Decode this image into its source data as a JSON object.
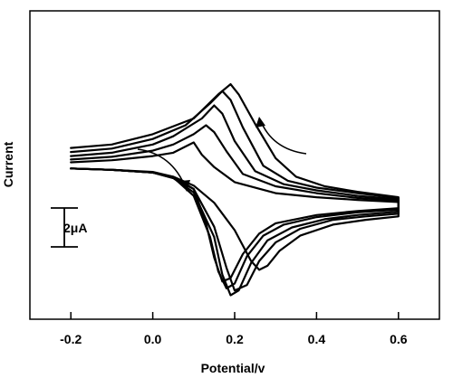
{
  "chart_data": {
    "type": "line",
    "xlabel": "Potential/v",
    "ylabel": "Current",
    "xlim": [
      -0.3,
      0.7
    ],
    "ylim": [
      -22,
      23
    ],
    "grid": false,
    "xticks": [
      -0.2,
      0.0,
      0.2,
      0.4,
      0.6
    ],
    "xtick_labels": [
      "-0.2",
      "0.0",
      "0.2",
      "0.4",
      "0.6"
    ],
    "scale_bar": {
      "label": "2μA",
      "magnitude_uA": 2
    },
    "series": [
      {
        "forward": [
          [
            -0.2,
            0.0
          ],
          [
            -0.1,
            -0.2
          ],
          [
            0.0,
            -0.6
          ],
          [
            0.05,
            -1.2
          ],
          [
            0.1,
            -3.0
          ],
          [
            0.13,
            -8.0
          ],
          [
            0.15,
            -13.0
          ],
          [
            0.17,
            -16.5
          ],
          [
            0.19,
            -16.0
          ],
          [
            0.22,
            -12.5
          ],
          [
            0.26,
            -9.5
          ],
          [
            0.3,
            -8.0
          ],
          [
            0.4,
            -6.8
          ],
          [
            0.5,
            -6.2
          ],
          [
            0.6,
            -5.8
          ]
        ],
        "reverse": [
          [
            0.6,
            -4.9
          ],
          [
            0.5,
            -4.6
          ],
          [
            0.4,
            -4.2
          ],
          [
            0.3,
            -3.6
          ],
          [
            0.2,
            -2.0
          ],
          [
            0.15,
            0.2
          ],
          [
            0.12,
            2.0
          ],
          [
            0.1,
            3.8
          ],
          [
            0.08,
            3.2
          ],
          [
            0.05,
            2.3
          ],
          [
            0.0,
            1.8
          ],
          [
            -0.1,
            1.2
          ],
          [
            -0.2,
            0.9
          ]
        ]
      },
      {
        "forward": [
          [
            -0.2,
            0.0
          ],
          [
            -0.1,
            -0.2
          ],
          [
            0.0,
            -0.6
          ],
          [
            0.05,
            -1.3
          ],
          [
            0.1,
            -4.0
          ],
          [
            0.14,
            -10.0
          ],
          [
            0.16,
            -15.0
          ],
          [
            0.18,
            -17.5
          ],
          [
            0.2,
            -16.8
          ],
          [
            0.23,
            -12.8
          ],
          [
            0.27,
            -9.8
          ],
          [
            0.32,
            -8.2
          ],
          [
            0.4,
            -7.1
          ],
          [
            0.5,
            -6.4
          ],
          [
            0.6,
            -6.0
          ]
        ],
        "reverse": [
          [
            0.6,
            -4.7
          ],
          [
            0.5,
            -4.3
          ],
          [
            0.4,
            -3.6
          ],
          [
            0.3,
            -2.6
          ],
          [
            0.22,
            -0.8
          ],
          [
            0.18,
            2.5
          ],
          [
            0.15,
            5.3
          ],
          [
            0.13,
            6.3
          ],
          [
            0.1,
            5.0
          ],
          [
            0.05,
            3.5
          ],
          [
            0.0,
            2.6
          ],
          [
            -0.1,
            1.7
          ],
          [
            -0.2,
            1.3
          ]
        ]
      },
      {
        "forward": [
          [
            -0.2,
            0.0
          ],
          [
            -0.1,
            -0.2
          ],
          [
            0.0,
            -0.6
          ],
          [
            0.05,
            -1.4
          ],
          [
            0.1,
            -3.5
          ],
          [
            0.15,
            -10.0
          ],
          [
            0.17,
            -15.5
          ],
          [
            0.19,
            -18.5
          ],
          [
            0.21,
            -17.8
          ],
          [
            0.24,
            -13.8
          ],
          [
            0.28,
            -10.5
          ],
          [
            0.34,
            -8.6
          ],
          [
            0.42,
            -7.4
          ],
          [
            0.5,
            -6.8
          ],
          [
            0.6,
            -6.3
          ]
        ],
        "reverse": [
          [
            0.6,
            -4.5
          ],
          [
            0.5,
            -4.0
          ],
          [
            0.4,
            -3.2
          ],
          [
            0.32,
            -2.3
          ],
          [
            0.25,
            -0.4
          ],
          [
            0.2,
            4.0
          ],
          [
            0.17,
            8.0
          ],
          [
            0.15,
            9.2
          ],
          [
            0.12,
            7.3
          ],
          [
            0.05,
            4.7
          ],
          [
            0.0,
            3.5
          ],
          [
            -0.1,
            2.3
          ],
          [
            -0.2,
            1.8
          ]
        ]
      },
      {
        "forward": [
          [
            -0.2,
            0.0
          ],
          [
            -0.1,
            -0.2
          ],
          [
            0.0,
            -0.6
          ],
          [
            0.05,
            -1.4
          ],
          [
            0.1,
            -3.0
          ],
          [
            0.15,
            -8.5
          ],
          [
            0.18,
            -14.5
          ],
          [
            0.2,
            -17.8
          ],
          [
            0.23,
            -17.0
          ],
          [
            0.26,
            -13.5
          ],
          [
            0.3,
            -10.8
          ],
          [
            0.36,
            -8.8
          ],
          [
            0.44,
            -7.5
          ],
          [
            0.52,
            -7.0
          ],
          [
            0.6,
            -6.6
          ]
        ],
        "reverse": [
          [
            0.6,
            -4.3
          ],
          [
            0.5,
            -3.6
          ],
          [
            0.4,
            -2.8
          ],
          [
            0.33,
            -1.8
          ],
          [
            0.27,
            0.4
          ],
          [
            0.22,
            6.0
          ],
          [
            0.19,
            10.0
          ],
          [
            0.17,
            11.3
          ],
          [
            0.14,
            9.5
          ],
          [
            0.08,
            6.3
          ],
          [
            0.0,
            4.3
          ],
          [
            -0.1,
            2.9
          ],
          [
            -0.2,
            2.4
          ]
        ]
      },
      {
        "forward": [
          [
            -0.2,
            0.0
          ],
          [
            -0.1,
            -0.2
          ],
          [
            0.0,
            -0.5
          ],
          [
            0.05,
            -1.2
          ],
          [
            0.1,
            -2.5
          ],
          [
            0.15,
            -5.0
          ],
          [
            0.2,
            -9.0
          ],
          [
            0.24,
            -13.5
          ],
          [
            0.26,
            -14.8
          ],
          [
            0.28,
            -14.2
          ],
          [
            0.31,
            -12.0
          ],
          [
            0.36,
            -9.8
          ],
          [
            0.44,
            -8.2
          ],
          [
            0.52,
            -7.5
          ],
          [
            0.6,
            -7.0
          ]
        ],
        "reverse": [
          [
            0.6,
            -4.2
          ],
          [
            0.5,
            -3.4
          ],
          [
            0.42,
            -2.6
          ],
          [
            0.35,
            -1.2
          ],
          [
            0.3,
            1.5
          ],
          [
            0.25,
            6.5
          ],
          [
            0.21,
            10.8
          ],
          [
            0.19,
            12.3
          ],
          [
            0.16,
            10.8
          ],
          [
            0.1,
            7.3
          ],
          [
            0.0,
            5.0
          ],
          [
            -0.1,
            3.5
          ],
          [
            -0.2,
            3.0
          ]
        ]
      }
    ]
  }
}
